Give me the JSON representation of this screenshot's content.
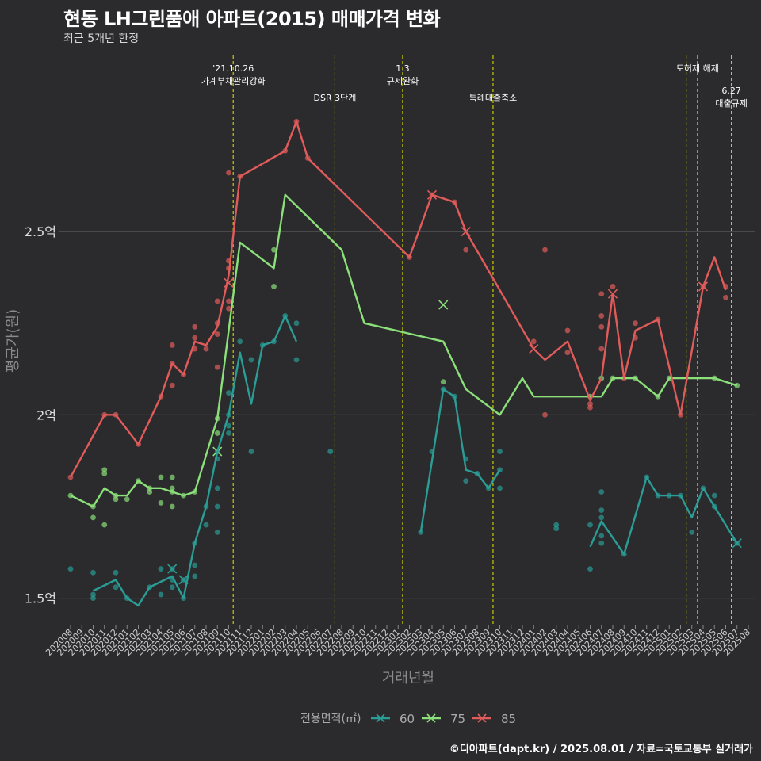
{
  "title": "현동 LH그린품애 아파트(2015) 매매가격 변화",
  "subtitle": "최근 5개년 한정",
  "caption": "©디아파트(dapt.kr) / 2025.08.01 / 자료=국토교통부 실거래가",
  "colors": {
    "s60": "#2a9d96",
    "s75": "#8be07a",
    "s85": "#e25b5b",
    "vline": "#d8d800",
    "grid": "#6a6a6a",
    "bg": "#2b2b2d"
  },
  "chart_data": {
    "type": "line",
    "xlabel": "거래년월",
    "ylabel": "평균가(원)",
    "ylim": [
      1.43,
      2.98
    ],
    "yticks": [
      {
        "v": 1.5,
        "label": "1.5억"
      },
      {
        "v": 2.0,
        "label": "2억"
      },
      {
        "v": 2.5,
        "label": "2.5억"
      }
    ],
    "categories": [
      "202008",
      "202009",
      "202010",
      "202011",
      "202012",
      "202101",
      "202102",
      "202103",
      "202104",
      "202105",
      "202106",
      "202107",
      "202108",
      "202109",
      "202110",
      "202111",
      "202112",
      "202201",
      "202202",
      "202203",
      "202204",
      "202205",
      "202206",
      "202207",
      "202208",
      "202209",
      "202210",
      "202211",
      "202212",
      "202301",
      "202302",
      "202303",
      "202304",
      "202305",
      "202306",
      "202307",
      "202308",
      "202309",
      "202310",
      "202311",
      "202312",
      "202401",
      "202402",
      "202403",
      "202404",
      "202405",
      "202406",
      "202407",
      "202408",
      "202409",
      "202410",
      "202411",
      "202412",
      "202501",
      "202502",
      "202503",
      "202504",
      "202505",
      "202506",
      "202507",
      "202508"
    ],
    "legend_title": "전용면적(㎡)",
    "series": [
      {
        "name": "60",
        "color_key": "s60",
        "line": [
          [
            2,
            1.52
          ],
          [
            4,
            1.55
          ],
          [
            5,
            1.5
          ],
          [
            6,
            1.48
          ],
          [
            7,
            1.53
          ],
          [
            9,
            1.56
          ],
          [
            10,
            1.5
          ],
          [
            11,
            1.65
          ],
          [
            12,
            1.75
          ],
          [
            13,
            1.9
          ],
          [
            14,
            2.0
          ],
          [
            15,
            2.17
          ],
          [
            16,
            2.03
          ],
          [
            17,
            2.19
          ],
          [
            18,
            2.2
          ],
          [
            19,
            2.27
          ],
          [
            20,
            2.2
          ],
          null,
          [
            31,
            1.68
          ],
          [
            33,
            2.07
          ],
          [
            34,
            2.05
          ],
          [
            35,
            1.85
          ],
          [
            36,
            1.84
          ],
          [
            37,
            1.8
          ],
          [
            38,
            1.85
          ],
          null,
          [
            46,
            1.64
          ],
          [
            47,
            1.71
          ],
          [
            49,
            1.62
          ],
          [
            51,
            1.83
          ],
          [
            52,
            1.78
          ],
          [
            53,
            1.78
          ],
          [
            54,
            1.78
          ],
          [
            55,
            1.72
          ],
          [
            56,
            1.8
          ],
          [
            59,
            1.65
          ]
        ],
        "points": [
          [
            0,
            1.58
          ],
          [
            2,
            1.51
          ],
          [
            2,
            1.5
          ],
          [
            2,
            1.57
          ],
          [
            4,
            1.57
          ],
          [
            4,
            1.53
          ],
          [
            5,
            1.5
          ],
          [
            7,
            1.53
          ],
          [
            8,
            1.51
          ],
          [
            8,
            1.58
          ],
          [
            9,
            1.55
          ],
          [
            9,
            1.58
          ],
          [
            9,
            1.53
          ],
          [
            10,
            1.55
          ],
          [
            10,
            1.5
          ],
          [
            11,
            1.56
          ],
          [
            11,
            1.59
          ],
          [
            11,
            1.65
          ],
          [
            12,
            1.75
          ],
          [
            12,
            1.7
          ],
          [
            13,
            1.88
          ],
          [
            13,
            1.75
          ],
          [
            13,
            1.8
          ],
          [
            13,
            1.68
          ],
          [
            13,
            1.9
          ],
          [
            14,
            1.95
          ],
          [
            14,
            1.97
          ],
          [
            14,
            2.0
          ],
          [
            14,
            2.06
          ],
          [
            15,
            2.2
          ],
          [
            16,
            2.15
          ],
          [
            16,
            1.9
          ],
          [
            17,
            2.19
          ],
          [
            18,
            2.2
          ],
          [
            19,
            2.27
          ],
          [
            20,
            2.25
          ],
          [
            20,
            2.15
          ],
          [
            23,
            1.9
          ],
          [
            31,
            1.68
          ],
          [
            32,
            1.9
          ],
          [
            33,
            2.07
          ],
          [
            34,
            2.05
          ],
          [
            35,
            1.82
          ],
          [
            35,
            1.88
          ],
          [
            36,
            1.84
          ],
          [
            37,
            1.8
          ],
          [
            38,
            1.85
          ],
          [
            38,
            1.8
          ],
          [
            38,
            1.9
          ],
          [
            43,
            1.7
          ],
          [
            43,
            1.69
          ],
          [
            46,
            1.7
          ],
          [
            46,
            1.58
          ],
          [
            47,
            1.79
          ],
          [
            47,
            1.74
          ],
          [
            47,
            1.72
          ],
          [
            47,
            1.67
          ],
          [
            47,
            1.65
          ],
          [
            49,
            1.62
          ],
          [
            51,
            1.83
          ],
          [
            52,
            1.78
          ],
          [
            53,
            1.78
          ],
          [
            54,
            1.78
          ],
          [
            55,
            1.68
          ],
          [
            56,
            1.8
          ],
          [
            57,
            1.78
          ],
          [
            57,
            1.75
          ],
          [
            59,
            1.65
          ]
        ],
        "crosses": [
          [
            9,
            1.58
          ],
          [
            10,
            1.55
          ],
          [
            59,
            1.65
          ]
        ]
      },
      {
        "name": "75",
        "color_key": "s75",
        "line": [
          [
            0,
            1.78
          ],
          [
            2,
            1.75
          ],
          [
            3,
            1.8
          ],
          [
            4,
            1.78
          ],
          [
            5,
            1.78
          ],
          [
            6,
            1.82
          ],
          [
            7,
            1.8
          ],
          [
            8,
            1.8
          ],
          [
            9,
            1.79
          ],
          [
            10,
            1.78
          ],
          [
            11,
            1.79
          ],
          [
            13,
            1.99
          ],
          [
            15,
            2.47
          ],
          [
            18,
            2.4
          ],
          [
            19,
            2.6
          ],
          [
            24,
            2.45
          ],
          [
            26,
            2.25
          ],
          [
            33,
            2.2
          ],
          [
            35,
            2.07
          ],
          [
            38,
            2.0
          ],
          [
            40,
            2.1
          ],
          [
            41,
            2.05
          ],
          [
            47,
            2.05
          ],
          [
            48,
            2.1
          ],
          [
            50,
            2.1
          ],
          [
            52,
            2.05
          ],
          [
            53,
            2.1
          ],
          [
            57,
            2.1
          ],
          [
            59,
            2.08
          ]
        ],
        "points": [
          [
            0,
            1.78
          ],
          [
            2,
            1.75
          ],
          [
            2,
            1.72
          ],
          [
            3,
            1.7
          ],
          [
            3,
            1.84
          ],
          [
            3,
            1.85
          ],
          [
            4,
            1.77
          ],
          [
            4,
            1.78
          ],
          [
            5,
            1.77
          ],
          [
            6,
            1.82
          ],
          [
            7,
            1.79
          ],
          [
            7,
            1.8
          ],
          [
            8,
            1.76
          ],
          [
            8,
            1.83
          ],
          [
            9,
            1.83
          ],
          [
            9,
            1.75
          ],
          [
            9,
            1.79
          ],
          [
            9,
            1.8
          ],
          [
            10,
            1.78
          ],
          [
            11,
            1.79
          ],
          [
            13,
            1.95
          ],
          [
            13,
            1.99
          ],
          [
            18,
            2.35
          ],
          [
            18,
            2.45
          ],
          [
            33,
            2.09
          ],
          [
            46,
            2.05
          ],
          [
            47,
            2.1
          ],
          [
            48,
            2.1
          ],
          [
            50,
            2.1
          ],
          [
            52,
            2.05
          ],
          [
            53,
            2.1
          ],
          [
            57,
            2.1
          ],
          [
            59,
            2.08
          ]
        ],
        "crosses": [
          [
            13,
            1.9
          ],
          [
            33,
            2.3
          ]
        ]
      },
      {
        "name": "85",
        "color_key": "s85",
        "line": [
          [
            0,
            1.83
          ],
          [
            3,
            2.0
          ],
          [
            4,
            2.0
          ],
          [
            6,
            1.92
          ],
          [
            8,
            2.05
          ],
          [
            9,
            2.14
          ],
          [
            10,
            2.11
          ],
          [
            11,
            2.2
          ],
          [
            12,
            2.19
          ],
          [
            13,
            2.24
          ],
          [
            14,
            2.38
          ],
          [
            15,
            2.65
          ],
          [
            19,
            2.72
          ],
          [
            20,
            2.8
          ],
          [
            21,
            2.7
          ],
          [
            30,
            2.43
          ],
          [
            32,
            2.6
          ],
          [
            34,
            2.58
          ],
          [
            35,
            2.5
          ],
          [
            41,
            2.18
          ],
          [
            42,
            2.15
          ],
          [
            44,
            2.2
          ],
          [
            46,
            2.04
          ],
          [
            47,
            2.1
          ],
          [
            48,
            2.33
          ],
          [
            49,
            2.1
          ],
          [
            50,
            2.23
          ],
          [
            52,
            2.26
          ],
          [
            54,
            2.0
          ],
          [
            56,
            2.35
          ],
          [
            57,
            2.43
          ],
          [
            58,
            2.34
          ]
        ],
        "points": [
          [
            0,
            1.83
          ],
          [
            3,
            2.0
          ],
          [
            4,
            2.0
          ],
          [
            6,
            1.92
          ],
          [
            8,
            2.05
          ],
          [
            9,
            2.14
          ],
          [
            9,
            2.08
          ],
          [
            9,
            2.19
          ],
          [
            10,
            2.11
          ],
          [
            11,
            2.18
          ],
          [
            11,
            2.21
          ],
          [
            11,
            2.24
          ],
          [
            12,
            2.18
          ],
          [
            13,
            2.31
          ],
          [
            13,
            2.13
          ],
          [
            13,
            2.25
          ],
          [
            13,
            2.22
          ],
          [
            14,
            2.31
          ],
          [
            14,
            2.4
          ],
          [
            14,
            2.42
          ],
          [
            14,
            2.29
          ],
          [
            14,
            2.66
          ],
          [
            15,
            2.65
          ],
          [
            19,
            2.72
          ],
          [
            20,
            2.8
          ],
          [
            21,
            2.7
          ],
          [
            30,
            2.43
          ],
          [
            32,
            2.6
          ],
          [
            34,
            2.58
          ],
          [
            35,
            2.45
          ],
          [
            41,
            2.2
          ],
          [
            42,
            2.45
          ],
          [
            42,
            2.0
          ],
          [
            44,
            2.23
          ],
          [
            44,
            2.17
          ],
          [
            46,
            2.03
          ],
          [
            46,
            2.02
          ],
          [
            47,
            2.27
          ],
          [
            47,
            2.18
          ],
          [
            47,
            2.24
          ],
          [
            47,
            2.33
          ],
          [
            48,
            2.35
          ],
          [
            49,
            2.1
          ],
          [
            50,
            2.25
          ],
          [
            50,
            2.21
          ],
          [
            52,
            2.26
          ],
          [
            54,
            2.0
          ],
          [
            56,
            2.35
          ],
          [
            58,
            2.35
          ],
          [
            58,
            2.32
          ]
        ],
        "crosses": [
          [
            14,
            2.36
          ],
          [
            32,
            2.6
          ],
          [
            35,
            2.5
          ],
          [
            41,
            2.18
          ],
          [
            48,
            2.33
          ],
          [
            56,
            2.35
          ]
        ]
      }
    ],
    "events": [
      {
        "x": 14.4,
        "lines": [
          "'21.10.26",
          "가계부채관리강화"
        ],
        "row": 0
      },
      {
        "x": 23.4,
        "lines": [
          "DSR 3단계"
        ],
        "row": 1
      },
      {
        "x": 29.4,
        "lines": [
          "1.3",
          "규제완화"
        ],
        "row": 0
      },
      {
        "x": 37.4,
        "lines": [
          "특례대출축소"
        ],
        "row": 1
      },
      {
        "x": 54.5,
        "lines": [
          ""
        ],
        "row": 0
      },
      {
        "x": 55.5,
        "lines": [
          "토허제 해제"
        ],
        "row": 0
      },
      {
        "x": 58.5,
        "lines": [
          "6.27",
          "대출규제"
        ],
        "row": 2
      }
    ]
  }
}
